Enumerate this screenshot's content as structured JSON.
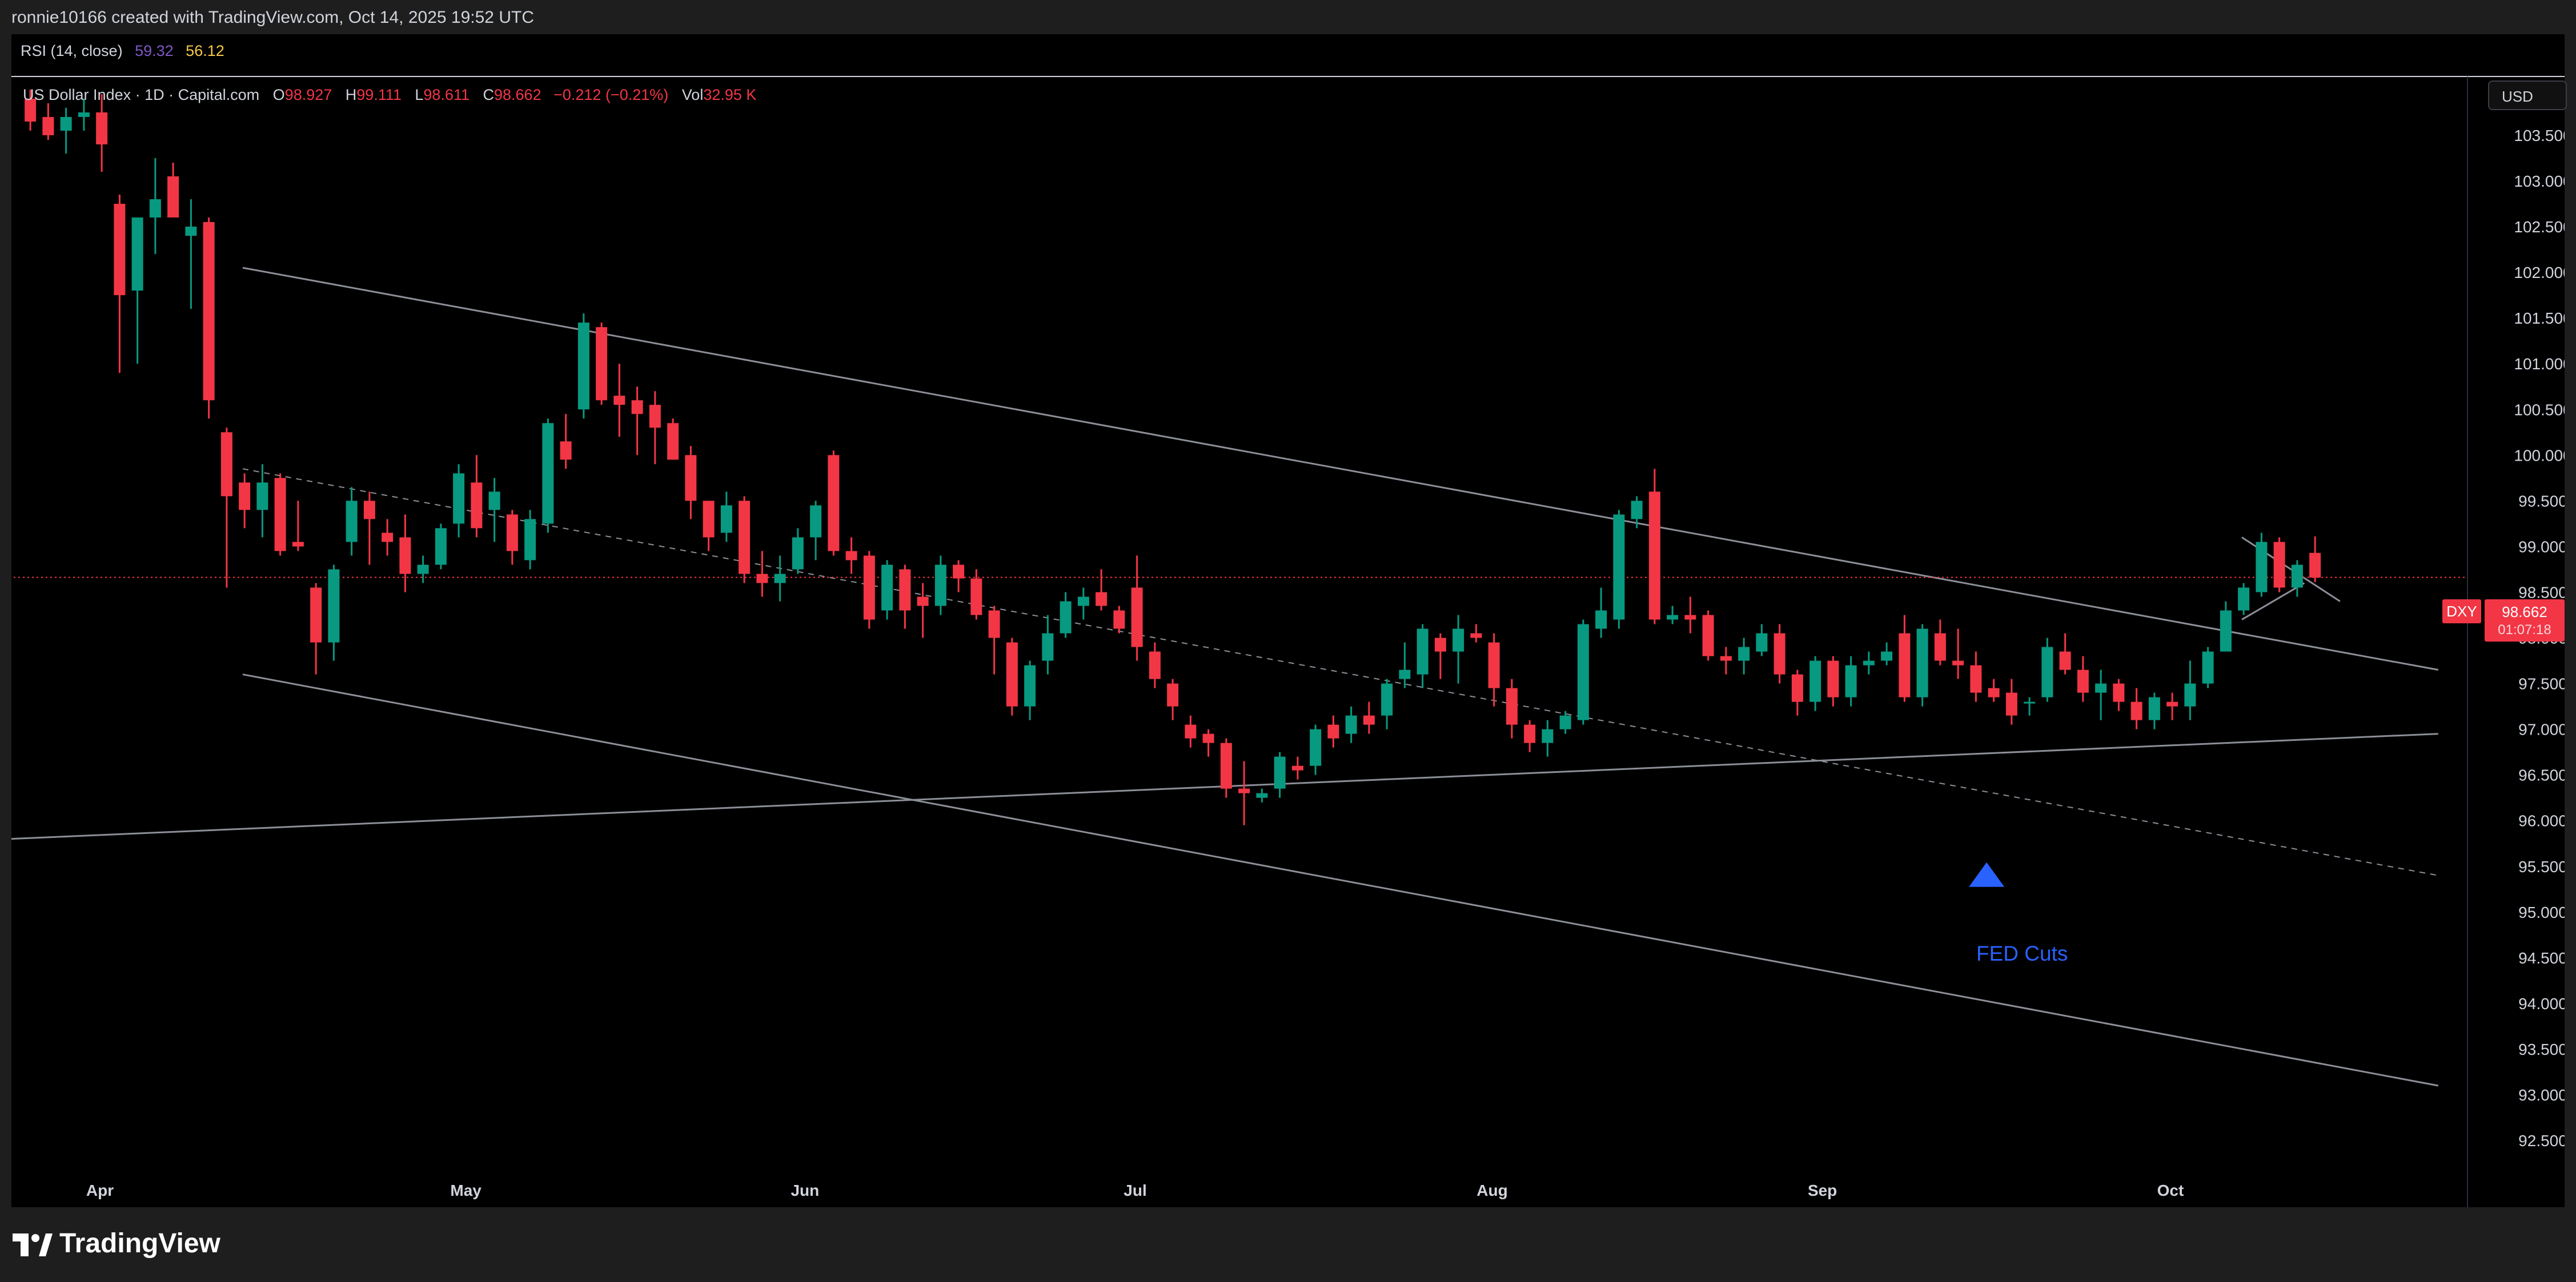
{
  "header": {
    "credit": "ronnie10166 created with TradingView.com, Oct 14, 2025 19:52 UTC"
  },
  "rsi": {
    "label": "RSI (14, close)",
    "value_1": "59.32",
    "value_2": "56.12"
  },
  "legend": {
    "symbol": "US Dollar Index · 1D · Capital.com",
    "o_key": "O",
    "o_val": "98.927",
    "h_key": "H",
    "h_val": "99.111",
    "l_key": "L",
    "l_val": "98.611",
    "c_key": "C",
    "c_val": "98.662",
    "change": "−0.212 (−0.21%)",
    "vol_key": "Vol",
    "vol_val": "32.95 K"
  },
  "currency": "USD",
  "price_badge": {
    "ticker": "DXY",
    "price": "98.662",
    "countdown": "01:07:18"
  },
  "annotation": {
    "label": "FED Cuts"
  },
  "footer": {
    "brand": "TradingView"
  },
  "colors": {
    "up": "#089981",
    "down": "#f23645",
    "background": "#000000",
    "lines": "#9598a1",
    "annotation": "#2962ff"
  },
  "chart_data": {
    "type": "candlestick",
    "series_name": "US Dollar Index",
    "ylim": [
      92.0,
      104.0
    ],
    "y_ticks": [
      "92.500",
      "93.000",
      "93.500",
      "94.000",
      "94.500",
      "95.000",
      "95.500",
      "96.000",
      "96.500",
      "97.000",
      "97.500",
      "98.000",
      "98.500",
      "99.000",
      "99.500",
      "100.000",
      "100.500",
      "101.000",
      "101.500",
      "102.000",
      "102.500",
      "103.000",
      "103.500"
    ],
    "x_range": [
      0,
      140
    ],
    "months": [
      {
        "label": "Apr",
        "x": 4
      },
      {
        "label": "May",
        "x": 24.5
      },
      {
        "label": "Jun",
        "x": 43.5
      },
      {
        "label": "Jul",
        "x": 62
      },
      {
        "label": "Aug",
        "x": 82
      },
      {
        "label": "Sep",
        "x": 100.5
      },
      {
        "label": "Oct",
        "x": 120
      }
    ],
    "candles": [
      {
        "x": 0.1,
        "o": 103.9,
        "h": 104.0,
        "l": 103.55,
        "c": 103.65
      },
      {
        "x": 1.1,
        "o": 103.7,
        "h": 103.85,
        "l": 103.45,
        "c": 103.5
      },
      {
        "x": 2.1,
        "o": 103.55,
        "h": 103.8,
        "l": 103.3,
        "c": 103.7
      },
      {
        "x": 3.1,
        "o": 103.7,
        "h": 103.9,
        "l": 103.55,
        "c": 103.75
      },
      {
        "x": 4.1,
        "o": 103.75,
        "h": 103.95,
        "l": 103.1,
        "c": 103.4
      },
      {
        "x": 5.1,
        "o": 102.75,
        "h": 102.85,
        "l": 100.9,
        "c": 101.75
      },
      {
        "x": 6.1,
        "o": 101.8,
        "h": 102.5,
        "l": 101.0,
        "c": 102.6
      },
      {
        "x": 7.1,
        "o": 102.6,
        "h": 103.25,
        "l": 102.2,
        "c": 102.8
      },
      {
        "x": 8.1,
        "o": 103.05,
        "h": 103.2,
        "l": 102.65,
        "c": 102.6
      },
      {
        "x": 9.1,
        "o": 102.4,
        "h": 102.8,
        "l": 101.6,
        "c": 102.5
      },
      {
        "x": 10.1,
        "o": 102.55,
        "h": 102.6,
        "l": 100.4,
        "c": 100.6
      },
      {
        "x": 11.1,
        "o": 100.25,
        "h": 100.3,
        "l": 98.55,
        "c": 99.55
      },
      {
        "x": 12.1,
        "o": 99.7,
        "h": 99.8,
        "l": 99.2,
        "c": 99.4
      },
      {
        "x": 13.1,
        "o": 99.4,
        "h": 99.9,
        "l": 99.1,
        "c": 99.7
      },
      {
        "x": 14.1,
        "o": 99.75,
        "h": 99.8,
        "l": 98.9,
        "c": 98.95
      },
      {
        "x": 15.1,
        "o": 99.05,
        "h": 99.5,
        "l": 98.95,
        "c": 99.0
      },
      {
        "x": 16.1,
        "o": 98.55,
        "h": 98.6,
        "l": 97.6,
        "c": 97.95
      },
      {
        "x": 17.1,
        "o": 97.95,
        "h": 98.8,
        "l": 97.75,
        "c": 98.75
      },
      {
        "x": 18.1,
        "o": 99.05,
        "h": 99.65,
        "l": 98.9,
        "c": 99.5
      },
      {
        "x": 19.1,
        "o": 99.5,
        "h": 99.6,
        "l": 98.8,
        "c": 99.3
      },
      {
        "x": 20.1,
        "o": 99.15,
        "h": 99.3,
        "l": 98.9,
        "c": 99.05
      },
      {
        "x": 21.1,
        "o": 99.1,
        "h": 99.35,
        "l": 98.5,
        "c": 98.7
      },
      {
        "x": 22.1,
        "o": 98.7,
        "h": 98.9,
        "l": 98.6,
        "c": 98.8
      },
      {
        "x": 23.1,
        "o": 98.8,
        "h": 99.25,
        "l": 98.75,
        "c": 99.2
      },
      {
        "x": 24.1,
        "o": 99.25,
        "h": 99.9,
        "l": 99.1,
        "c": 99.8
      },
      {
        "x": 25.1,
        "o": 99.7,
        "h": 100.0,
        "l": 99.1,
        "c": 99.2
      },
      {
        "x": 26.1,
        "o": 99.4,
        "h": 99.75,
        "l": 99.05,
        "c": 99.6
      },
      {
        "x": 27.1,
        "o": 99.35,
        "h": 99.4,
        "l": 98.8,
        "c": 98.95
      },
      {
        "x": 28.1,
        "o": 98.85,
        "h": 99.4,
        "l": 98.75,
        "c": 99.3
      },
      {
        "x": 29.1,
        "o": 99.25,
        "h": 100.4,
        "l": 99.15,
        "c": 100.35
      },
      {
        "x": 30.1,
        "o": 100.15,
        "h": 100.45,
        "l": 99.85,
        "c": 99.95
      },
      {
        "x": 31.1,
        "o": 100.5,
        "h": 101.55,
        "l": 100.4,
        "c": 101.45
      },
      {
        "x": 32.1,
        "o": 101.4,
        "h": 101.45,
        "l": 100.55,
        "c": 100.6
      },
      {
        "x": 33.1,
        "o": 100.65,
        "h": 101.0,
        "l": 100.2,
        "c": 100.55
      },
      {
        "x": 34.1,
        "o": 100.6,
        "h": 100.75,
        "l": 100.0,
        "c": 100.45
      },
      {
        "x": 35.1,
        "o": 100.55,
        "h": 100.7,
        "l": 99.9,
        "c": 100.3
      },
      {
        "x": 36.1,
        "o": 100.35,
        "h": 100.4,
        "l": 99.95,
        "c": 99.95
      },
      {
        "x": 37.1,
        "o": 100.0,
        "h": 100.1,
        "l": 99.3,
        "c": 99.5
      },
      {
        "x": 38.1,
        "o": 99.5,
        "h": 99.5,
        "l": 98.95,
        "c": 99.1
      },
      {
        "x": 39.1,
        "o": 99.15,
        "h": 99.6,
        "l": 99.05,
        "c": 99.45
      },
      {
        "x": 40.1,
        "o": 99.5,
        "h": 99.55,
        "l": 98.6,
        "c": 98.7
      },
      {
        "x": 41.1,
        "o": 98.7,
        "h": 98.95,
        "l": 98.45,
        "c": 98.6
      },
      {
        "x": 42.1,
        "o": 98.6,
        "h": 98.9,
        "l": 98.4,
        "c": 98.7
      },
      {
        "x": 43.1,
        "o": 98.75,
        "h": 99.2,
        "l": 98.7,
        "c": 99.1
      },
      {
        "x": 44.1,
        "o": 99.1,
        "h": 99.5,
        "l": 98.85,
        "c": 99.45
      },
      {
        "x": 45.1,
        "o": 100.0,
        "h": 100.05,
        "l": 98.9,
        "c": 98.95
      },
      {
        "x": 46.1,
        "o": 98.95,
        "h": 99.1,
        "l": 98.7,
        "c": 98.85
      },
      {
        "x": 47.1,
        "o": 98.9,
        "h": 98.95,
        "l": 98.1,
        "c": 98.2
      },
      {
        "x": 48.1,
        "o": 98.3,
        "h": 98.85,
        "l": 98.2,
        "c": 98.8
      },
      {
        "x": 49.1,
        "o": 98.75,
        "h": 98.8,
        "l": 98.1,
        "c": 98.3
      },
      {
        "x": 50.1,
        "o": 98.45,
        "h": 98.6,
        "l": 98.0,
        "c": 98.35
      },
      {
        "x": 51.1,
        "o": 98.35,
        "h": 98.9,
        "l": 98.25,
        "c": 98.8
      },
      {
        "x": 52.1,
        "o": 98.8,
        "h": 98.85,
        "l": 98.5,
        "c": 98.65
      },
      {
        "x": 53.1,
        "o": 98.65,
        "h": 98.75,
        "l": 98.2,
        "c": 98.25
      },
      {
        "x": 54.1,
        "o": 98.3,
        "h": 98.35,
        "l": 97.6,
        "c": 98.0
      },
      {
        "x": 55.1,
        "o": 97.95,
        "h": 98.0,
        "l": 97.15,
        "c": 97.25
      },
      {
        "x": 56.1,
        "o": 97.25,
        "h": 97.75,
        "l": 97.1,
        "c": 97.7
      },
      {
        "x": 57.1,
        "o": 97.75,
        "h": 98.25,
        "l": 97.6,
        "c": 98.05
      },
      {
        "x": 58.1,
        "o": 98.05,
        "h": 98.5,
        "l": 98.0,
        "c": 98.4
      },
      {
        "x": 59.1,
        "o": 98.35,
        "h": 98.55,
        "l": 98.2,
        "c": 98.45
      },
      {
        "x": 60.1,
        "o": 98.5,
        "h": 98.75,
        "l": 98.3,
        "c": 98.35
      },
      {
        "x": 61.1,
        "o": 98.3,
        "h": 98.35,
        "l": 98.05,
        "c": 98.1
      },
      {
        "x": 62.1,
        "o": 98.55,
        "h": 98.9,
        "l": 97.75,
        "c": 97.9
      },
      {
        "x": 63.1,
        "o": 97.85,
        "h": 97.95,
        "l": 97.45,
        "c": 97.55
      },
      {
        "x": 64.1,
        "o": 97.5,
        "h": 97.55,
        "l": 97.1,
        "c": 97.25
      },
      {
        "x": 65.1,
        "o": 97.05,
        "h": 97.15,
        "l": 96.8,
        "c": 96.9
      },
      {
        "x": 66.1,
        "o": 96.95,
        "h": 97.0,
        "l": 96.7,
        "c": 96.85
      },
      {
        "x": 67.1,
        "o": 96.85,
        "h": 96.9,
        "l": 96.25,
        "c": 96.35
      },
      {
        "x": 68.1,
        "o": 96.35,
        "h": 96.65,
        "l": 95.95,
        "c": 96.3
      },
      {
        "x": 69.1,
        "o": 96.25,
        "h": 96.35,
        "l": 96.2,
        "c": 96.3
      },
      {
        "x": 70.1,
        "o": 96.35,
        "h": 96.75,
        "l": 96.25,
        "c": 96.7
      },
      {
        "x": 71.1,
        "o": 96.6,
        "h": 96.7,
        "l": 96.45,
        "c": 96.55
      },
      {
        "x": 72.1,
        "o": 96.6,
        "h": 97.05,
        "l": 96.5,
        "c": 97.0
      },
      {
        "x": 73.1,
        "o": 97.05,
        "h": 97.15,
        "l": 96.8,
        "c": 96.9
      },
      {
        "x": 74.1,
        "o": 96.95,
        "h": 97.25,
        "l": 96.85,
        "c": 97.15
      },
      {
        "x": 75.1,
        "o": 97.15,
        "h": 97.3,
        "l": 96.95,
        "c": 97.05
      },
      {
        "x": 76.1,
        "o": 97.15,
        "h": 97.55,
        "l": 97.0,
        "c": 97.5
      },
      {
        "x": 77.1,
        "o": 97.55,
        "h": 97.95,
        "l": 97.45,
        "c": 97.65
      },
      {
        "x": 78.1,
        "o": 97.6,
        "h": 98.15,
        "l": 97.45,
        "c": 98.1
      },
      {
        "x": 79.1,
        "o": 98.0,
        "h": 98.05,
        "l": 97.55,
        "c": 97.85
      },
      {
        "x": 80.1,
        "o": 97.85,
        "h": 98.25,
        "l": 97.5,
        "c": 98.1
      },
      {
        "x": 81.1,
        "o": 98.05,
        "h": 98.15,
        "l": 97.95,
        "c": 98.0
      },
      {
        "x": 82.1,
        "o": 97.95,
        "h": 98.05,
        "l": 97.25,
        "c": 97.45
      },
      {
        "x": 83.1,
        "o": 97.45,
        "h": 97.55,
        "l": 96.9,
        "c": 97.05
      },
      {
        "x": 84.1,
        "o": 97.05,
        "h": 97.1,
        "l": 96.75,
        "c": 96.85
      },
      {
        "x": 85.1,
        "o": 96.85,
        "h": 97.1,
        "l": 96.7,
        "c": 97.0
      },
      {
        "x": 86.1,
        "o": 97.0,
        "h": 97.2,
        "l": 96.95,
        "c": 97.15
      },
      {
        "x": 87.1,
        "o": 97.1,
        "h": 98.2,
        "l": 97.05,
        "c": 98.15
      },
      {
        "x": 88.1,
        "o": 98.1,
        "h": 98.55,
        "l": 98.0,
        "c": 98.3
      },
      {
        "x": 89.1,
        "o": 98.2,
        "h": 99.4,
        "l": 98.1,
        "c": 99.35
      },
      {
        "x": 90.1,
        "o": 99.3,
        "h": 99.55,
        "l": 99.2,
        "c": 99.5
      },
      {
        "x": 91.1,
        "o": 99.6,
        "h": 99.85,
        "l": 98.15,
        "c": 98.2
      },
      {
        "x": 92.1,
        "o": 98.2,
        "h": 98.35,
        "l": 98.15,
        "c": 98.25
      },
      {
        "x": 93.1,
        "o": 98.25,
        "h": 98.45,
        "l": 98.05,
        "c": 98.2
      },
      {
        "x": 94.1,
        "o": 98.25,
        "h": 98.3,
        "l": 97.75,
        "c": 97.8
      },
      {
        "x": 95.1,
        "o": 97.8,
        "h": 97.9,
        "l": 97.6,
        "c": 97.75
      },
      {
        "x": 96.1,
        "o": 97.75,
        "h": 98.0,
        "l": 97.6,
        "c": 97.9
      },
      {
        "x": 97.1,
        "o": 97.85,
        "h": 98.15,
        "l": 97.8,
        "c": 98.05
      },
      {
        "x": 98.1,
        "o": 98.05,
        "h": 98.15,
        "l": 97.5,
        "c": 97.6
      },
      {
        "x": 99.1,
        "o": 97.6,
        "h": 97.65,
        "l": 97.15,
        "c": 97.3
      },
      {
        "x": 100.1,
        "o": 97.3,
        "h": 97.8,
        "l": 97.2,
        "c": 97.75
      },
      {
        "x": 101.1,
        "o": 97.75,
        "h": 97.8,
        "l": 97.25,
        "c": 97.35
      },
      {
        "x": 102.1,
        "o": 97.35,
        "h": 97.8,
        "l": 97.25,
        "c": 97.7
      },
      {
        "x": 103.1,
        "o": 97.7,
        "h": 97.85,
        "l": 97.6,
        "c": 97.75
      },
      {
        "x": 104.1,
        "o": 97.75,
        "h": 97.95,
        "l": 97.7,
        "c": 97.85
      },
      {
        "x": 105.1,
        "o": 98.05,
        "h": 98.25,
        "l": 97.3,
        "c": 97.35
      },
      {
        "x": 106.1,
        "o": 97.35,
        "h": 98.15,
        "l": 97.25,
        "c": 98.1
      },
      {
        "x": 107.1,
        "o": 98.05,
        "h": 98.2,
        "l": 97.7,
        "c": 97.75
      },
      {
        "x": 108.1,
        "o": 97.75,
        "h": 98.1,
        "l": 97.55,
        "c": 97.7
      },
      {
        "x": 109.1,
        "o": 97.7,
        "h": 97.85,
        "l": 97.3,
        "c": 97.4
      },
      {
        "x": 110.1,
        "o": 97.45,
        "h": 97.55,
        "l": 97.3,
        "c": 97.35
      },
      {
        "x": 111.1,
        "o": 97.4,
        "h": 97.55,
        "l": 97.05,
        "c": 97.15
      },
      {
        "x": 112.1,
        "o": 97.3,
        "h": 97.35,
        "l": 97.15,
        "c": 97.3
      },
      {
        "x": 113.1,
        "o": 97.35,
        "h": 98.0,
        "l": 97.3,
        "c": 97.9
      },
      {
        "x": 114.1,
        "o": 97.85,
        "h": 98.05,
        "l": 97.6,
        "c": 97.65
      },
      {
        "x": 115.1,
        "o": 97.65,
        "h": 97.8,
        "l": 97.3,
        "c": 97.4
      },
      {
        "x": 116.1,
        "o": 97.4,
        "h": 97.65,
        "l": 97.1,
        "c": 97.5
      },
      {
        "x": 117.1,
        "o": 97.5,
        "h": 97.55,
        "l": 97.2,
        "c": 97.3
      },
      {
        "x": 118.1,
        "o": 97.3,
        "h": 97.45,
        "l": 97.0,
        "c": 97.1
      },
      {
        "x": 119.1,
        "o": 97.1,
        "h": 97.4,
        "l": 97.0,
        "c": 97.35
      },
      {
        "x": 120.1,
        "o": 97.3,
        "h": 97.4,
        "l": 97.1,
        "c": 97.25
      },
      {
        "x": 121.1,
        "o": 97.25,
        "h": 97.75,
        "l": 97.1,
        "c": 97.5
      },
      {
        "x": 122.1,
        "o": 97.5,
        "h": 97.9,
        "l": 97.45,
        "c": 97.85
      },
      {
        "x": 123.1,
        "o": 97.85,
        "h": 98.4,
        "l": 97.85,
        "c": 98.3
      },
      {
        "x": 124.1,
        "o": 98.3,
        "h": 98.6,
        "l": 98.25,
        "c": 98.55
      },
      {
        "x": 125.1,
        "o": 98.5,
        "h": 99.15,
        "l": 98.45,
        "c": 99.05
      },
      {
        "x": 126.1,
        "o": 99.05,
        "h": 99.1,
        "l": 98.5,
        "c": 98.55
      },
      {
        "x": 127.1,
        "o": 98.55,
        "h": 98.85,
        "l": 98.45,
        "c": 98.8
      },
      {
        "x": 128.1,
        "o": 98.93,
        "h": 99.11,
        "l": 98.61,
        "c": 98.66
      }
    ],
    "trendlines": [
      {
        "style": "solid",
        "x1": 12,
        "y1": 102.05,
        "x2": 135,
        "y2": 97.65
      },
      {
        "style": "solid",
        "x1": 12,
        "y1": 97.6,
        "x2": 135,
        "y2": 93.1
      },
      {
        "style": "solid",
        "x1": -1,
        "y1": 95.8,
        "x2": 135,
        "y2": 96.95
      },
      {
        "style": "dashed",
        "x1": 12,
        "y1": 99.85,
        "x2": 135,
        "y2": 95.4
      },
      {
        "style": "solid",
        "x1": 124,
        "y1": 99.1,
        "x2": 129.5,
        "y2": 98.4
      },
      {
        "style": "solid",
        "x1": 124,
        "y1": 98.2,
        "x2": 127.5,
        "y2": 98.6
      }
    ],
    "current_price_line": 98.662,
    "annotation": {
      "text": "FED Cuts",
      "x": 109.7,
      "y": 95.2,
      "marker": "up-arrow"
    }
  }
}
